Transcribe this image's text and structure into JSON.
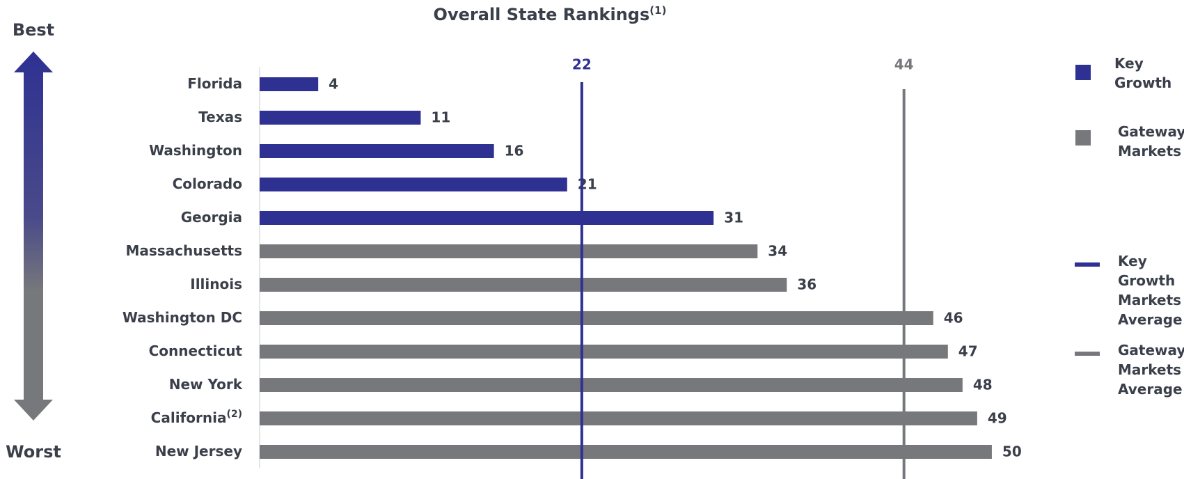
{
  "chart_data": {
    "type": "bar",
    "orientation": "horizontal",
    "title": "Overall State Rankings",
    "title_note": "(1)",
    "axis_labels": {
      "top": "Best",
      "bottom": "Worst"
    },
    "categories": [
      "Florida",
      "Texas",
      "Washington",
      "Colorado",
      "Georgia",
      "Massachusetts",
      "Illinois",
      "Washington DC",
      "Connecticut",
      "New York",
      "California",
      "New Jersey"
    ],
    "category_notes": [
      null,
      null,
      null,
      null,
      null,
      null,
      null,
      null,
      null,
      null,
      "(2)",
      null
    ],
    "series": [
      {
        "name": "Key Growth",
        "color": "#2e3192",
        "values": [
          4,
          11,
          16,
          21,
          31,
          null,
          null,
          null,
          null,
          null,
          null,
          null
        ]
      },
      {
        "name": "Gateway Markets",
        "color": "#77787b",
        "values": [
          null,
          null,
          null,
          null,
          null,
          34,
          36,
          46,
          47,
          48,
          49,
          50
        ]
      }
    ],
    "reference_lines": [
      {
        "name": "Key Growth Markets Average",
        "value": 22,
        "color": "#2e3192"
      },
      {
        "name": "Gateway Markets Average",
        "value": 44,
        "color": "#77787b"
      }
    ],
    "xlim": [
      0,
      52
    ]
  }
}
